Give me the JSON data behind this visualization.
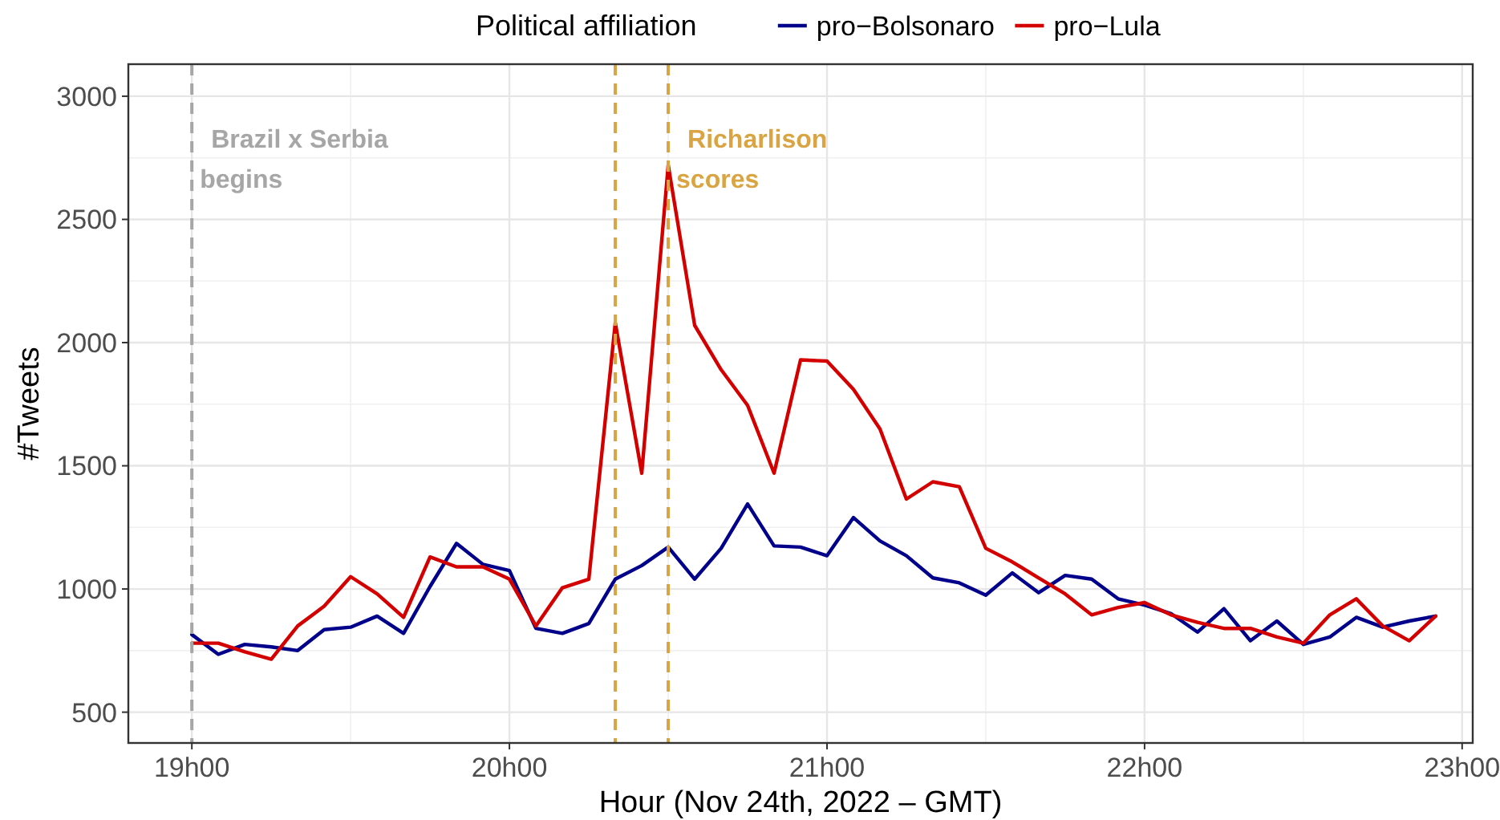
{
  "chart_data": {
    "type": "line",
    "xlabel": "Hour (Nov 24th, 2022 – GMT)",
    "ylabel": "#Tweets",
    "legend_title": "Political affiliation",
    "x": [
      "2022-11-24T19:00",
      "2022-11-24T19:05",
      "2022-11-24T19:10",
      "2022-11-24T19:15",
      "2022-11-24T19:20",
      "2022-11-24T19:25",
      "2022-11-24T19:30",
      "2022-11-24T19:35",
      "2022-11-24T19:40",
      "2022-11-24T19:45",
      "2022-11-24T19:50",
      "2022-11-24T19:55",
      "2022-11-24T20:00",
      "2022-11-24T20:05",
      "2022-11-24T20:10",
      "2022-11-24T20:15",
      "2022-11-24T20:20",
      "2022-11-24T20:25",
      "2022-11-24T20:30",
      "2022-11-24T20:35",
      "2022-11-24T20:40",
      "2022-11-24T20:45",
      "2022-11-24T20:50",
      "2022-11-24T20:55",
      "2022-11-24T21:00",
      "2022-11-24T21:05",
      "2022-11-24T21:10",
      "2022-11-24T21:15",
      "2022-11-24T21:20",
      "2022-11-24T21:25",
      "2022-11-24T21:30",
      "2022-11-24T21:35",
      "2022-11-24T21:40",
      "2022-11-24T21:45",
      "2022-11-24T21:50",
      "2022-11-24T21:55",
      "2022-11-24T22:00",
      "2022-11-24T22:05",
      "2022-11-24T22:10",
      "2022-11-24T22:15",
      "2022-11-24T22:20",
      "2022-11-24T22:25",
      "2022-11-24T22:30",
      "2022-11-24T22:35",
      "2022-11-24T22:40",
      "2022-11-24T22:45",
      "2022-11-24T22:50",
      "2022-11-24T22:55"
    ],
    "series": [
      {
        "name": "pro−Bolsonaro",
        "color": "#00008b",
        "values": [
          815,
          735,
          775,
          765,
          750,
          835,
          845,
          890,
          820,
          1010,
          1185,
          1100,
          1075,
          840,
          820,
          860,
          1040,
          1095,
          1170,
          1040,
          1165,
          1345,
          1175,
          1170,
          1135,
          1290,
          1195,
          1135,
          1045,
          1025,
          975,
          1065,
          985,
          1055,
          1040,
          960,
          935,
          900,
          825,
          920,
          790,
          870,
          775,
          805,
          885,
          845,
          870,
          890
        ]
      },
      {
        "name": "pro−Lula",
        "color": "#d40000",
        "values": [
          780,
          780,
          745,
          715,
          850,
          930,
          1050,
          980,
          885,
          1130,
          1090,
          1090,
          1040,
          850,
          1005,
          1040,
          2080,
          1470,
          2720,
          2070,
          1890,
          1745,
          1470,
          1930,
          1925,
          1810,
          1650,
          1365,
          1435,
          1415,
          1165,
          1110,
          1045,
          980,
          895,
          925,
          945,
          895,
          865,
          840,
          840,
          805,
          780,
          895,
          960,
          850,
          790,
          890
        ]
      }
    ],
    "xlim": [
      "2022-11-24T18:48",
      "2022-11-24T23:02"
    ],
    "ylim": [
      375,
      3130
    ],
    "xticks": [
      {
        "value": "2022-11-24T19:00",
        "label": "19h00"
      },
      {
        "value": "2022-11-24T20:00",
        "label": "20h00"
      },
      {
        "value": "2022-11-24T21:00",
        "label": "21h00"
      },
      {
        "value": "2022-11-24T22:00",
        "label": "22h00"
      },
      {
        "value": "2022-11-24T23:00",
        "label": "23h00"
      }
    ],
    "yticks": [
      500,
      1000,
      1500,
      2000,
      2500,
      3000
    ],
    "ref_lines": [
      {
        "axis": "x",
        "value": "2022-11-24T19:00",
        "label": "Brazil x Serbia\nbegins",
        "color": "#a6a6a6",
        "line_style": "dashed"
      },
      {
        "axis": "x",
        "value": "2022-11-24T20:20",
        "color": "#d9a441",
        "line_style": "dashed"
      },
      {
        "axis": "x",
        "value": "2022-11-24T20:30",
        "label": "Richarlison\nscores",
        "color": "#d9a441",
        "line_style": "dashed"
      }
    ],
    "grid": true,
    "legend": "top",
    "line_style": "solid",
    "marker": "none"
  }
}
